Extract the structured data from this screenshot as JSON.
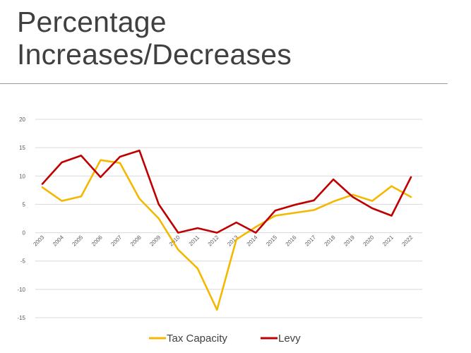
{
  "slide": {
    "title_line1": "Percentage",
    "title_line2": "Increases/Decreases"
  },
  "chart_data": {
    "type": "line",
    "title": "",
    "xlabel": "",
    "ylabel": "",
    "ylim": [
      -15,
      20
    ],
    "yticks": [
      20,
      15,
      10,
      5,
      0,
      -5,
      -10,
      -15
    ],
    "grid": "horizontal",
    "legend_position": "bottom",
    "categories": [
      "2003",
      "2004",
      "2005",
      "2006",
      "2007",
      "2008",
      "2009",
      "2010",
      "2011",
      "2012",
      "2013",
      "2014",
      "2015",
      "2016",
      "2017",
      "2018",
      "2019",
      "2020",
      "2021",
      "2022"
    ],
    "series": [
      {
        "name": "Tax Capacity",
        "color": "#f5b800",
        "values": [
          8.0,
          5.6,
          6.4,
          12.8,
          12.3,
          6.0,
          2.5,
          -3.0,
          -6.3,
          -13.6,
          -1.2,
          1.0,
          3.0,
          3.5,
          4.0,
          5.5,
          6.7,
          5.6,
          8.2,
          6.3
        ]
      },
      {
        "name": "Levy",
        "color": "#c00000",
        "values": [
          8.6,
          12.4,
          13.6,
          9.8,
          13.4,
          14.5,
          5.0,
          0.0,
          0.8,
          0.0,
          1.8,
          0.0,
          3.9,
          4.9,
          5.7,
          9.4,
          6.3,
          4.3,
          3.0,
          9.8
        ]
      }
    ]
  }
}
